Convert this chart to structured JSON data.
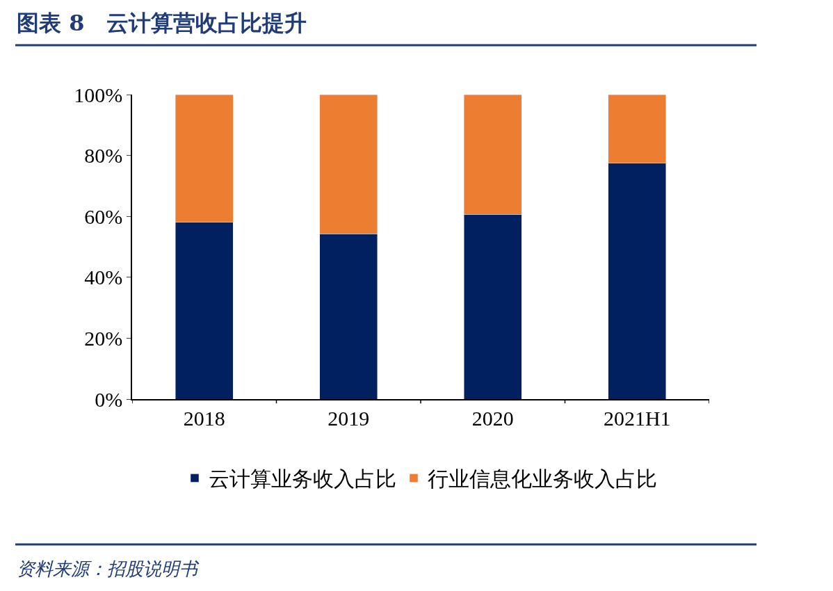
{
  "chart_data": {
    "type": "bar",
    "title": "图表 8　云计算营收占比提升",
    "stacked": true,
    "categories": [
      "2018",
      "2019",
      "2020",
      "2021H1"
    ],
    "series": [
      {
        "name": "云计算业务收入占比",
        "color": "#002060",
        "values": [
          58.0,
          54.3,
          60.7,
          77.4
        ]
      },
      {
        "name": "行业信息化业务收入占比",
        "color": "#ed7d31",
        "values": [
          42.0,
          45.7,
          39.3,
          22.6
        ]
      }
    ],
    "ylim": [
      0,
      100
    ],
    "yticks": [
      {
        "value": 0,
        "label": "0%"
      },
      {
        "value": 20,
        "label": "20%"
      },
      {
        "value": 40,
        "label": "40%"
      },
      {
        "value": 60,
        "label": "60%"
      },
      {
        "value": 80,
        "label": "80%"
      },
      {
        "value": 100,
        "label": "100%"
      }
    ],
    "legend": "bottom",
    "annotations": [
      "资料来源：招股说明书"
    ]
  }
}
